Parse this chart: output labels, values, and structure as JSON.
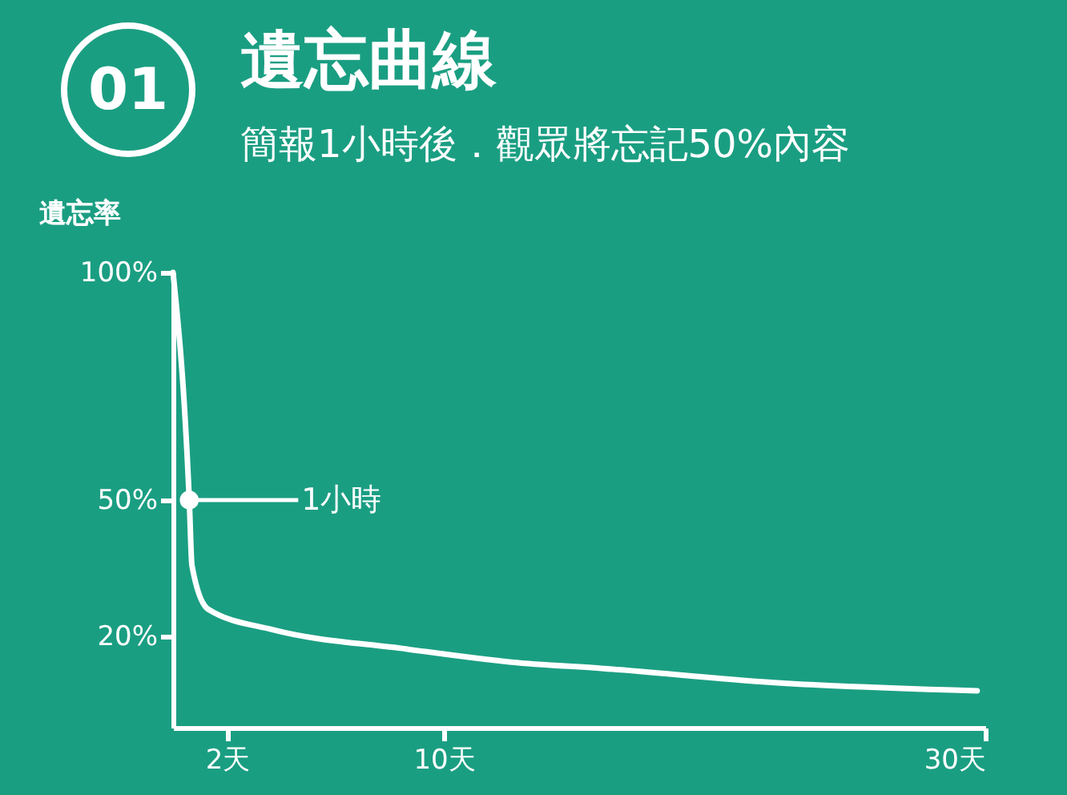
{
  "chart_data": {
    "type": "line",
    "title": "遺忘曲線",
    "subtitle": "簡報1小時後．觀眾將忘記50%內容",
    "ylabel": "遺忘率",
    "x": [
      0,
      0.6,
      0.7,
      1.3,
      3.7,
      8.6,
      12.5,
      15.9,
      22.2,
      29.7
    ],
    "series": [
      {
        "color": "#ffffff",
        "values": [
          100,
          50,
          35.6,
          26,
          21.5,
          17.3,
          14.4,
          13,
          9.9,
          8.1
        ]
      }
    ],
    "xlim": [
      0,
      30
    ],
    "xticks": [
      {
        "value": 2,
        "label": "2天"
      },
      {
        "value": 10,
        "label": "10天"
      },
      {
        "value": 30,
        "label": "30天"
      }
    ],
    "ylim": [
      0,
      100
    ],
    "yticks": [
      {
        "value": 20,
        "label": "20%"
      },
      {
        "value": 50,
        "label": "50%"
      },
      {
        "value": 100,
        "label": "100%"
      }
    ],
    "annotations": [
      "01",
      "1小時"
    ],
    "grid": false,
    "marker": "none",
    "line_style": "solid"
  }
}
